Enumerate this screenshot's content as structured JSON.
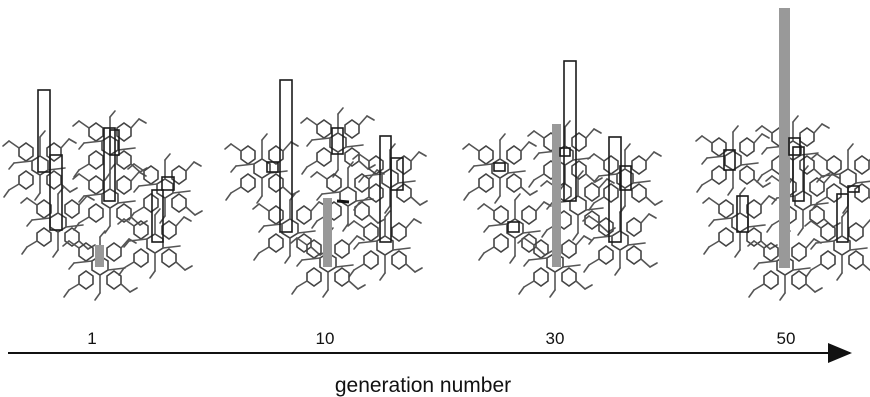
{
  "axis": {
    "title": "generation number"
  },
  "panels": [
    {
      "label": "1"
    },
    {
      "label": "10"
    },
    {
      "label": "30"
    },
    {
      "label": "50"
    }
  ],
  "colors": {
    "bar": "#999999",
    "outline": "#1a1a1a",
    "molecule": "#555555"
  }
}
